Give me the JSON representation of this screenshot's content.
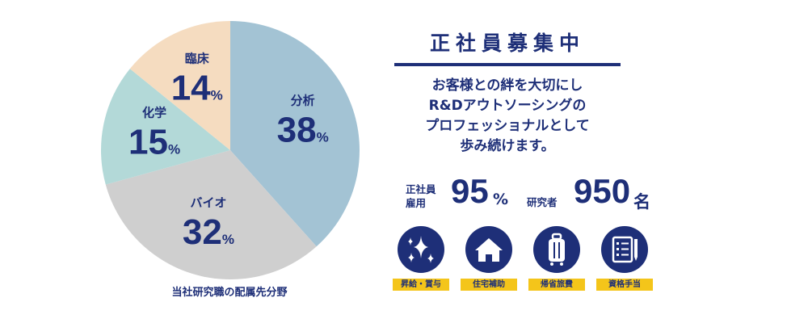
{
  "chart_data": {
    "type": "pie",
    "caption": "当社研究職の配属先分野",
    "start": "top",
    "direction": "clockwise",
    "slices": [
      {
        "label": "分析",
        "value": 38,
        "color": "#a3c3d4"
      },
      {
        "label": "バイオ",
        "value": 32,
        "color": "#cfcfcf"
      },
      {
        "label": "化学",
        "value": 15,
        "color": "#b3d9d8"
      },
      {
        "label": "臨床",
        "value": 14,
        "color": "#f5dcc0"
      }
    ],
    "unit": "%"
  },
  "recruit": {
    "title": "正社員募集中",
    "message": [
      "お客様との絆を大切にし",
      "R&Dアウトソーシングの",
      "プロフェッショナルとして",
      "歩み続けます。"
    ]
  },
  "stats": {
    "employment": {
      "label_line1": "正社員",
      "label_line2": "雇用",
      "value": "95",
      "unit": "%"
    },
    "researchers": {
      "label": "研究者",
      "value": "950",
      "unit": "名"
    }
  },
  "benefits": [
    {
      "label": "昇給・賞与",
      "icon": "sparkle-icon"
    },
    {
      "label": "住宅補助",
      "icon": "house-icon"
    },
    {
      "label": "帰省旅費",
      "icon": "suitcase-icon"
    },
    {
      "label": "資格手当",
      "icon": "checklist-icon"
    }
  ],
  "colors": {
    "navy": "#1e2f78",
    "yellow": "#f4c51a"
  }
}
